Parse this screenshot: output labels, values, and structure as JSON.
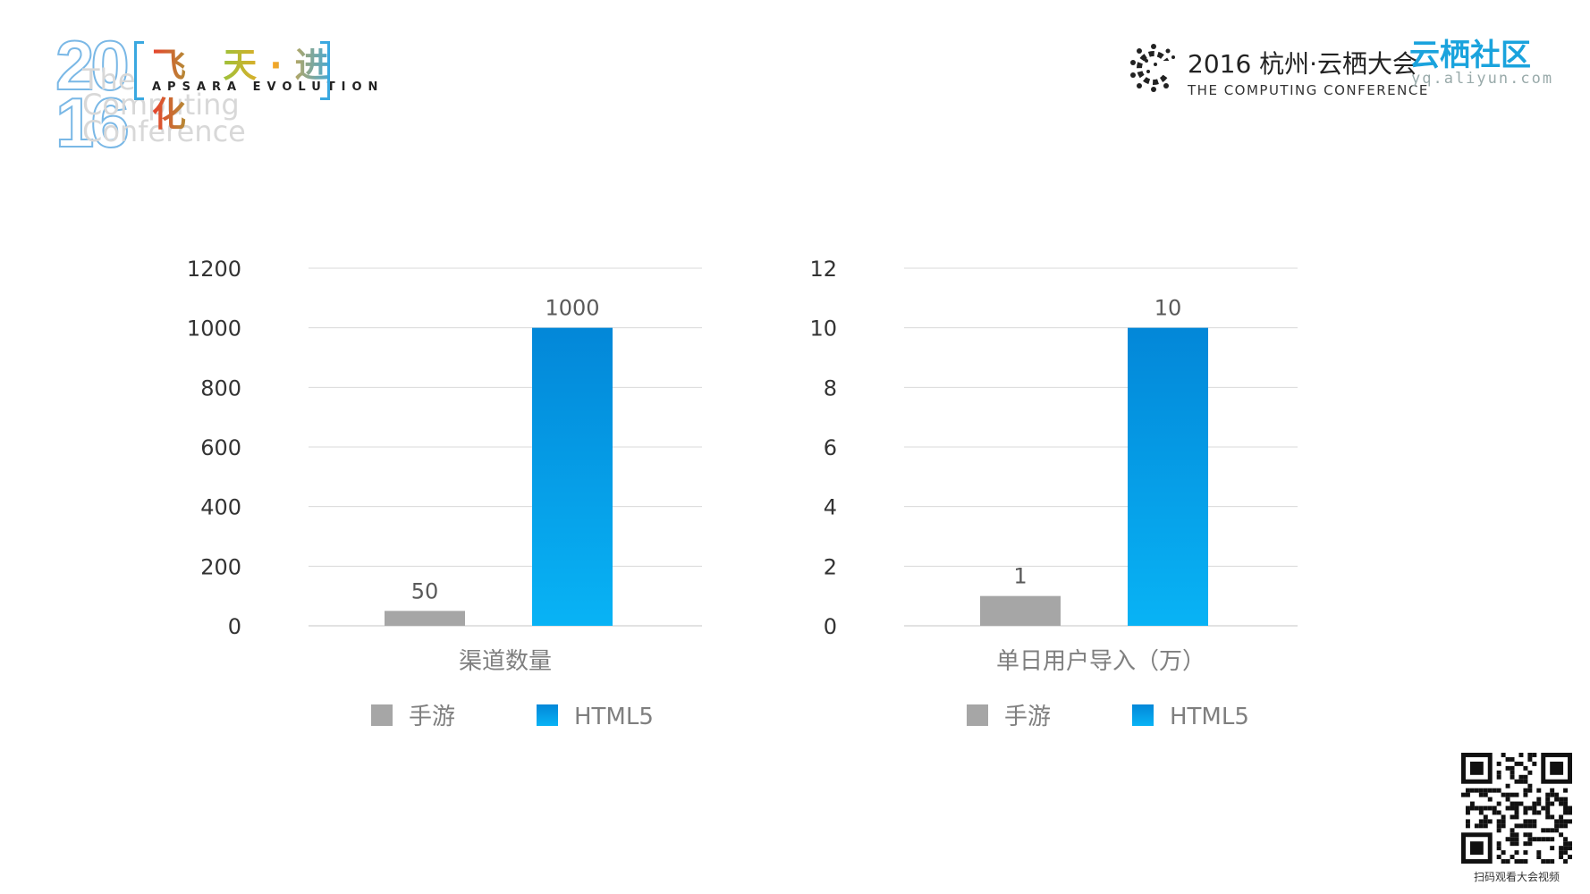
{
  "header": {
    "year_top": "20",
    "year_bottom": "16",
    "faint_lines": [
      "The",
      "Computing",
      "Conference"
    ],
    "apsara_cn": "飞 天·进 化",
    "apsara_en": "APSARA EVOLUTION",
    "conference_cn": "2016 杭州·云栖大会",
    "conference_en": "THE COMPUTING CONFERENCE",
    "community_cn": "云栖社区",
    "community_en": "yq.aliyun.com"
  },
  "footer": {
    "qr_caption": "扫码观看大会视频"
  },
  "colors": {
    "mobile_game": "#a6a6a6",
    "html5_top": "#0387d8",
    "html5_bottom": "#08b3f5",
    "grid": "#d9d9d9",
    "text": "#595959"
  },
  "chart_data": [
    {
      "type": "bar",
      "categories": [
        "渠道数量"
      ],
      "series": [
        {
          "name": "手游",
          "values": [
            50
          ]
        },
        {
          "name": "HTML5",
          "values": [
            1000
          ]
        }
      ],
      "yticks": [
        0,
        200,
        400,
        600,
        800,
        1000,
        1200
      ],
      "ylim": [
        0,
        1200
      ],
      "legend": "bottom",
      "grid": true
    },
    {
      "type": "bar",
      "categories": [
        "单日用户导入（万）"
      ],
      "series": [
        {
          "name": "手游",
          "values": [
            1
          ]
        },
        {
          "name": "HTML5",
          "values": [
            10
          ]
        }
      ],
      "yticks": [
        0,
        2,
        4,
        6,
        8,
        10,
        12
      ],
      "ylim": [
        0,
        12
      ],
      "legend": "bottom",
      "grid": true
    }
  ]
}
